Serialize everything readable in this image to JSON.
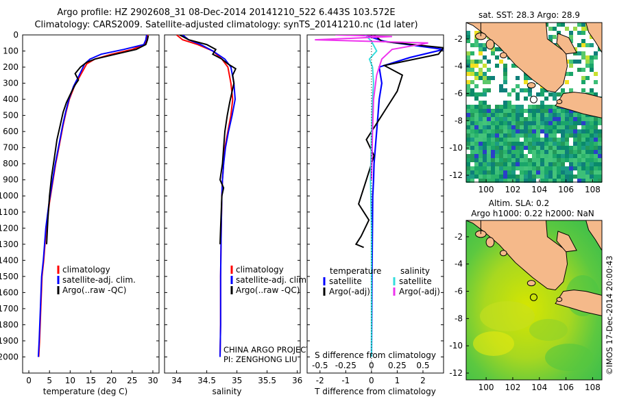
{
  "header": {
    "line1": "Argo profile: HZ 2902608_31 08-Dec-2014 20141210_522 6.443S 103.572E",
    "line2": "Climatology: CARS2009. Satellite-adjusted climatology: synTS_20141210.nc (1d later)"
  },
  "colors": {
    "clim": "#ff0000",
    "sat": "#0000ff",
    "argo": "#000000",
    "sal_sat": "#33dddd",
    "sal_argo": "#ee33ee",
    "land": "#f5b98a"
  },
  "depth_axis": {
    "ticks": [
      "0",
      "100",
      "200",
      "300",
      "400",
      "500",
      "600",
      "700",
      "800",
      "900",
      "1000",
      "1100",
      "1200",
      "1300",
      "1400",
      "1500",
      "1600",
      "1700",
      "1800",
      "1900",
      "2000"
    ],
    "ylim": [
      0,
      2100
    ]
  },
  "chart_data": [
    {
      "type": "line",
      "id": "temperature",
      "xlabel": "temperature (deg C)",
      "ylabel": "",
      "xlim": [
        -1.5,
        31.5
      ],
      "ylim": [
        0,
        2100
      ],
      "xticks": [
        "0",
        "5",
        "10",
        "15",
        "20",
        "25",
        "30"
      ],
      "legend": [
        "climatology",
        "satellite-adj. clim.",
        "Argo(..raw -QC)"
      ],
      "series": [
        {
          "name": "climatology",
          "color": "#ff0000",
          "x": [
            28.8,
            28.6,
            28.0,
            25,
            20,
            16,
            14,
            12.5,
            11,
            9.8,
            9.0,
            8.3,
            7.7,
            7.1,
            6.5,
            6.0,
            5.5,
            5.0,
            4.6,
            4.2,
            3.9,
            3.6,
            3.2,
            2.9,
            2.6,
            2.4
          ],
          "y": [
            0,
            30,
            60,
            90,
            120,
            150,
            180,
            250,
            320,
            400,
            480,
            560,
            640,
            720,
            800,
            880,
            960,
            1040,
            1120,
            1200,
            1300,
            1400,
            1500,
            1700,
            1900,
            2000
          ]
        },
        {
          "name": "satellite-adj. clim.",
          "color": "#0000ff",
          "x": [
            28.5,
            28.3,
            27.8,
            23,
            17.5,
            14.8,
            13.5,
            12.2,
            10.8,
            9.7,
            8.9,
            8.2,
            7.6,
            7.0,
            6.4,
            5.9,
            5.4,
            4.9,
            4.5,
            4.1,
            3.8,
            3.5,
            3.1,
            2.8,
            2.5,
            2.3
          ],
          "y": [
            0,
            30,
            60,
            90,
            120,
            150,
            180,
            250,
            320,
            400,
            480,
            560,
            640,
            720,
            800,
            880,
            960,
            1040,
            1120,
            1200,
            1300,
            1400,
            1500,
            1700,
            1900,
            2000
          ]
        },
        {
          "name": "Argo(..raw -QC)",
          "color": "#000000",
          "x": [
            28.9,
            28.7,
            28.3,
            26,
            21,
            16,
            14,
            12.5,
            11.2,
            12,
            11.2,
            10.2,
            9.1,
            8.3,
            7.6,
            6.8,
            6.2,
            5.5,
            5.0,
            4.6,
            4.3
          ],
          "y": [
            5,
            30,
            60,
            90,
            120,
            150,
            170,
            200,
            240,
            280,
            310,
            360,
            420,
            480,
            560,
            650,
            760,
            880,
            1000,
            1150,
            1300
          ]
        }
      ]
    },
    {
      "type": "line",
      "id": "salinity",
      "xlabel": "salinity",
      "xlim": [
        33.8,
        36.05
      ],
      "ylim": [
        0,
        2100
      ],
      "xticks": [
        "34",
        "34.5",
        "35",
        "35.5",
        "36"
      ],
      "legend": [
        "climatology",
        "satellite-adj. clim.",
        "Argo(..raw -QC)"
      ],
      "annotations": [
        "CHINA ARGO PROJECT",
        "PI: ZENGHONG LIU"
      ],
      "series": [
        {
          "name": "climatology",
          "color": "#ff0000",
          "x": [
            34.0,
            34.1,
            34.35,
            34.6,
            34.75,
            34.85,
            34.9,
            34.93,
            34.9,
            34.85,
            34.8,
            34.78,
            34.76,
            34.75,
            34.74,
            34.73,
            34.73,
            34.72
          ],
          "y": [
            0,
            30,
            60,
            100,
            150,
            200,
            300,
            400,
            500,
            600,
            700,
            800,
            900,
            1000,
            1200,
            1500,
            1800,
            2000
          ]
        },
        {
          "name": "satellite-adj. clim.",
          "color": "#0000ff",
          "x": [
            34.1,
            34.2,
            34.4,
            34.6,
            34.8,
            34.9,
            34.95,
            34.97,
            34.92,
            34.86,
            34.81,
            34.78,
            34.76,
            34.75,
            34.74,
            34.73,
            34.73,
            34.72
          ],
          "y": [
            0,
            30,
            60,
            100,
            150,
            200,
            300,
            400,
            500,
            600,
            700,
            800,
            900,
            1000,
            1200,
            1500,
            1800,
            2000
          ]
        },
        {
          "name": "Argo(..raw -QC)",
          "color": "#000000",
          "x": [
            34.05,
            34.2,
            34.5,
            34.65,
            34.6,
            34.75,
            34.85,
            34.98,
            34.93,
            34.95,
            34.92,
            34.88,
            34.84,
            34.8,
            34.78,
            34.76,
            34.72,
            34.78,
            34.75,
            34.74,
            34.73,
            34.72
          ],
          "y": [
            0,
            30,
            60,
            90,
            120,
            150,
            180,
            210,
            250,
            300,
            350,
            420,
            500,
            600,
            700,
            800,
            900,
            950,
            1000,
            1100,
            1200,
            1300
          ]
        }
      ]
    },
    {
      "type": "line",
      "id": "differences",
      "xlabel": "T difference from climatology",
      "xlabel_top": "S difference from climatology",
      "xlim": [
        -2.5,
        2.8
      ],
      "ylim": [
        0,
        2100
      ],
      "xticks": [
        "-2",
        "-1",
        "0",
        "1",
        "2"
      ],
      "xticks_top": [
        "-0.5",
        "-0.25",
        "0",
        "0.25",
        "0.5"
      ],
      "legend_headers": [
        "temperature",
        "salinity"
      ],
      "legend": [
        "satellite",
        "Argo(-adj)",
        "satellite",
        "Argo(-adj)"
      ],
      "series": [
        {
          "name": "temperature satellite",
          "color": "#0000ff",
          "x": [
            -0.3,
            0.5,
            2.8,
            1.5,
            0.3,
            0.4,
            0.3,
            0.25,
            0.2,
            0.15,
            0.1,
            0.08,
            0.05,
            0.02,
            0.0
          ],
          "y": [
            0,
            40,
            90,
            140,
            200,
            300,
            400,
            500,
            600,
            700,
            800,
            900,
            1000,
            1500,
            2000
          ]
        },
        {
          "name": "temperature Argo(-adj)",
          "color": "#000000",
          "x": [
            0.1,
            0.4,
            2.8,
            2.6,
            0.5,
            1.2,
            1.0,
            0.6,
            0.2,
            -0.2,
            0.1,
            -0.2,
            -0.5,
            -0.1,
            -0.4,
            -0.6,
            -0.3
          ],
          "y": [
            0,
            40,
            80,
            120,
            190,
            250,
            350,
            450,
            550,
            650,
            750,
            900,
            1050,
            1150,
            1250,
            1300,
            1320
          ]
        },
        {
          "name": "salinity satellite",
          "color": "#33dddd",
          "x": [
            -0.06,
            0.0,
            0.05,
            -0.02,
            0.01,
            0.02,
            0.01,
            0.0,
            -0.01,
            0.0,
            0.0,
            0.0
          ],
          "y": [
            0,
            40,
            100,
            150,
            200,
            300,
            400,
            600,
            900,
            1200,
            1600,
            2000
          ]
        },
        {
          "name": "salinity Argo(-adj)",
          "color": "#ee33ee",
          "x": [
            -0.35,
            0.2,
            -0.55,
            0.55,
            0.2,
            0.1,
            0.05,
            0.02,
            0.01,
            0.0
          ],
          "y": [
            0,
            10,
            30,
            50,
            90,
            150,
            250,
            400,
            600,
            900
          ]
        }
      ]
    }
  ],
  "map_sst": {
    "title": "sat. SST: 28.3  Argo: 28.9",
    "yticks": [
      "-2",
      "-4",
      "-6",
      "-8",
      "-10",
      "-12"
    ],
    "xticks": [
      "100",
      "102",
      "104",
      "106",
      "108"
    ]
  },
  "map_sla": {
    "title1": "Altim. SLA: 0.2",
    "title2": "Argo h1000: 0.22  h2000: NaN",
    "yticks": [
      "-2",
      "-4",
      "-6",
      "-8",
      "-10",
      "-12"
    ],
    "xticks": [
      "100",
      "102",
      "104",
      "106",
      "108"
    ]
  },
  "footer": {
    "credit": "©IMOS 17-Dec-2014 20:00:43"
  }
}
